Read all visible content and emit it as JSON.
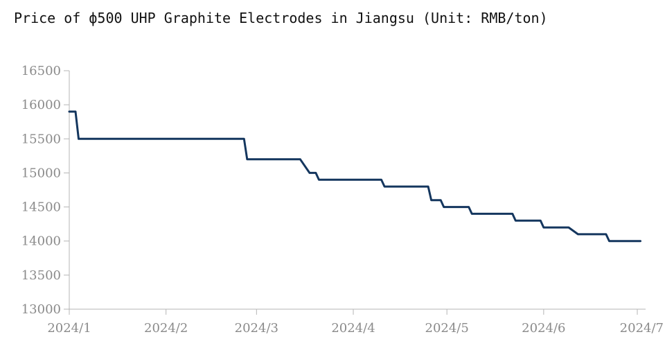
{
  "chart_data": {
    "type": "line",
    "title": "Price of ф500 UHP Graphite Electrodes in Jiangsu (Unit: RMB/ton)",
    "xlabel": "",
    "ylabel": "",
    "ylim": [
      13000,
      16500
    ],
    "yticks": [
      16500,
      16000,
      15500,
      15000,
      14500,
      14000,
      13500,
      13000
    ],
    "xticks": [
      "2024/1",
      "2024/2",
      "2024/3",
      "2024/4",
      "2024/5",
      "2024/6",
      "2024/7"
    ],
    "xlim": [
      "2024-01-01",
      "2024-07-01"
    ],
    "grid": false,
    "line_color": "#14365e",
    "axis_color": "#b5b5b5",
    "series": [
      {
        "points": [
          [
            "2024-01-01",
            15900
          ],
          [
            "2024-01-03",
            15900
          ],
          [
            "2024-01-04",
            15500
          ],
          [
            "2024-02-26",
            15500
          ],
          [
            "2024-02-27",
            15200
          ],
          [
            "2024-03-15",
            15200
          ],
          [
            "2024-03-18",
            15000
          ],
          [
            "2024-03-20",
            15000
          ],
          [
            "2024-03-21",
            14900
          ],
          [
            "2024-04-10",
            14900
          ],
          [
            "2024-04-11",
            14800
          ],
          [
            "2024-04-25",
            14800
          ],
          [
            "2024-04-26",
            14600
          ],
          [
            "2024-04-29",
            14600
          ],
          [
            "2024-04-30",
            14500
          ],
          [
            "2024-05-08",
            14500
          ],
          [
            "2024-05-09",
            14400
          ],
          [
            "2024-05-22",
            14400
          ],
          [
            "2024-05-23",
            14300
          ],
          [
            "2024-05-31",
            14300
          ],
          [
            "2024-06-01",
            14200
          ],
          [
            "2024-06-09",
            14200
          ],
          [
            "2024-06-12",
            14100
          ],
          [
            "2024-06-21",
            14100
          ],
          [
            "2024-06-22",
            14000
          ],
          [
            "2024-07-02",
            14000
          ]
        ]
      }
    ]
  }
}
